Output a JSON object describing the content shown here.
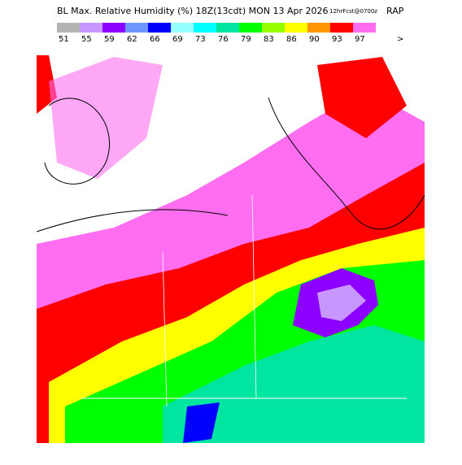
{
  "header": {
    "title": "BL Max. Relative Humidity (%) 18Z(13cdt) MON 13 Apr 2026",
    "forecast": "12hrFcst@0700z",
    "model": "RAP"
  },
  "legend": {
    "items": [
      {
        "value": 51,
        "color": "#b4b4b4"
      },
      {
        "value": 55,
        "color": "#c896ff"
      },
      {
        "value": 59,
        "color": "#8c00ff"
      },
      {
        "value": 62,
        "color": "#6e96ff"
      },
      {
        "value": 66,
        "color": "#0000ff"
      },
      {
        "value": 69,
        "color": "#96ffff"
      },
      {
        "value": 73,
        "color": "#00ffff"
      },
      {
        "value": 76,
        "color": "#00e6a0"
      },
      {
        "value": 79,
        "color": "#00ff00"
      },
      {
        "value": 83,
        "color": "#96ff00"
      },
      {
        "value": 86,
        "color": "#ffff00"
      },
      {
        "value": 90,
        "color": "#ff9600"
      },
      {
        "value": 93,
        "color": "#ff0000"
      },
      {
        "value": 97,
        "color": "#ff6ef0"
      }
    ],
    "more": ">"
  }
}
